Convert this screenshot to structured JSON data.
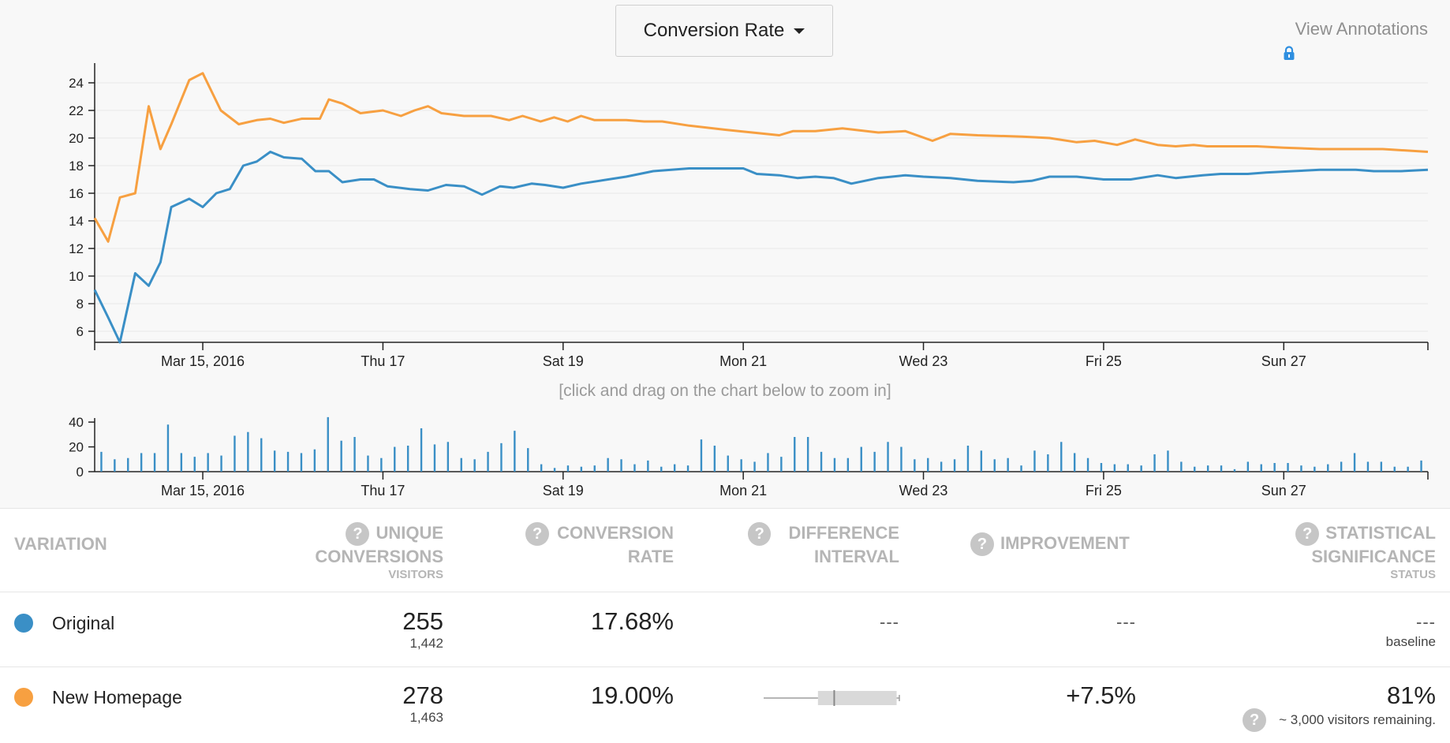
{
  "header": {
    "metric_dropdown_label": "Conversion Rate",
    "view_annotations_label": "View Annotations",
    "zoom_hint": "[click and drag on the chart below to zoom in]"
  },
  "colors": {
    "original": "#3a8fc6",
    "new_homepage": "#f7a041",
    "lock_icon": "#2f8fe0",
    "header_text": "#b5b5b5",
    "help_icon": "#c6c6c6"
  },
  "icons": [
    "lock-icon",
    "help-icon",
    "caret-down-icon"
  ],
  "chart_data": [
    {
      "type": "line",
      "title": "",
      "xlabel": "",
      "ylabel": "",
      "x_ticks": [
        "Mar 15, 2016",
        "Thu 17",
        "Sat 19",
        "Mon 21",
        "Wed 23",
        "Fri 25",
        "Sun 27"
      ],
      "y_ticks": [
        6,
        8,
        10,
        12,
        14,
        16,
        18,
        20,
        22,
        24
      ],
      "ylim": [
        5.2,
        25.2
      ],
      "x_unit": "days from chart start",
      "xlim": [
        0,
        14.8
      ],
      "grid": true,
      "legend": "none",
      "series": [
        {
          "name": "New Homepage",
          "color": "#f7a041",
          "points": [
            [
              0,
              14.2
            ],
            [
              0.15,
              12.5
            ],
            [
              0.28,
              15.7
            ],
            [
              0.45,
              16.0
            ],
            [
              0.6,
              22.3
            ],
            [
              0.73,
              19.2
            ],
            [
              0.85,
              21.0
            ],
            [
              1.05,
              24.2
            ],
            [
              1.2,
              24.7
            ],
            [
              1.4,
              22.0
            ],
            [
              1.6,
              21.0
            ],
            [
              1.8,
              21.3
            ],
            [
              1.95,
              21.4
            ],
            [
              2.1,
              21.1
            ],
            [
              2.3,
              21.4
            ],
            [
              2.5,
              21.4
            ],
            [
              2.6,
              22.8
            ],
            [
              2.75,
              22.5
            ],
            [
              2.95,
              21.8
            ],
            [
              3.2,
              22.0
            ],
            [
              3.4,
              21.6
            ],
            [
              3.55,
              22.0
            ],
            [
              3.7,
              22.3
            ],
            [
              3.85,
              21.8
            ],
            [
              4.1,
              21.6
            ],
            [
              4.4,
              21.6
            ],
            [
              4.6,
              21.3
            ],
            [
              4.75,
              21.6
            ],
            [
              4.95,
              21.2
            ],
            [
              5.1,
              21.5
            ],
            [
              5.25,
              21.2
            ],
            [
              5.4,
              21.6
            ],
            [
              5.55,
              21.3
            ],
            [
              5.9,
              21.3
            ],
            [
              6.1,
              21.2
            ],
            [
              6.3,
              21.2
            ],
            [
              6.6,
              20.9
            ],
            [
              7.0,
              20.6
            ],
            [
              7.3,
              20.4
            ],
            [
              7.6,
              20.2
            ],
            [
              7.75,
              20.5
            ],
            [
              8.0,
              20.5
            ],
            [
              8.3,
              20.7
            ],
            [
              8.7,
              20.4
            ],
            [
              9.0,
              20.5
            ],
            [
              9.3,
              19.8
            ],
            [
              9.5,
              20.3
            ],
            [
              9.8,
              20.2
            ],
            [
              10.3,
              20.1
            ],
            [
              10.6,
              20.0
            ],
            [
              10.9,
              19.7
            ],
            [
              11.1,
              19.8
            ],
            [
              11.35,
              19.5
            ],
            [
              11.55,
              19.9
            ],
            [
              11.8,
              19.5
            ],
            [
              12.0,
              19.4
            ],
            [
              12.2,
              19.5
            ],
            [
              12.35,
              19.4
            ],
            [
              12.9,
              19.4
            ],
            [
              13.2,
              19.3
            ],
            [
              13.6,
              19.2
            ],
            [
              14.0,
              19.2
            ],
            [
              14.3,
              19.2
            ],
            [
              14.8,
              19.0
            ]
          ]
        },
        {
          "name": "Original",
          "color": "#3a8fc6",
          "points": [
            [
              0,
              9.0
            ],
            [
              0.15,
              7.0
            ],
            [
              0.28,
              5.2
            ],
            [
              0.45,
              10.2
            ],
            [
              0.6,
              9.3
            ],
            [
              0.73,
              11.0
            ],
            [
              0.85,
              15.0
            ],
            [
              1.05,
              15.6
            ],
            [
              1.2,
              15.0
            ],
            [
              1.35,
              16.0
            ],
            [
              1.5,
              16.3
            ],
            [
              1.65,
              18.0
            ],
            [
              1.8,
              18.3
            ],
            [
              1.95,
              19.0
            ],
            [
              2.1,
              18.6
            ],
            [
              2.3,
              18.5
            ],
            [
              2.45,
              17.6
            ],
            [
              2.6,
              17.6
            ],
            [
              2.75,
              16.8
            ],
            [
              2.95,
              17.0
            ],
            [
              3.1,
              17.0
            ],
            [
              3.25,
              16.5
            ],
            [
              3.5,
              16.3
            ],
            [
              3.7,
              16.2
            ],
            [
              3.9,
              16.6
            ],
            [
              4.1,
              16.5
            ],
            [
              4.3,
              15.9
            ],
            [
              4.5,
              16.5
            ],
            [
              4.65,
              16.4
            ],
            [
              4.85,
              16.7
            ],
            [
              5.0,
              16.6
            ],
            [
              5.2,
              16.4
            ],
            [
              5.4,
              16.7
            ],
            [
              5.6,
              16.9
            ],
            [
              5.9,
              17.2
            ],
            [
              6.2,
              17.6
            ],
            [
              6.6,
              17.8
            ],
            [
              7.2,
              17.8
            ],
            [
              7.35,
              17.4
            ],
            [
              7.6,
              17.3
            ],
            [
              7.8,
              17.1
            ],
            [
              8.0,
              17.2
            ],
            [
              8.2,
              17.1
            ],
            [
              8.4,
              16.7
            ],
            [
              8.7,
              17.1
            ],
            [
              9.0,
              17.3
            ],
            [
              9.2,
              17.2
            ],
            [
              9.5,
              17.1
            ],
            [
              9.8,
              16.9
            ],
            [
              10.2,
              16.8
            ],
            [
              10.4,
              16.9
            ],
            [
              10.6,
              17.2
            ],
            [
              10.9,
              17.2
            ],
            [
              11.2,
              17.0
            ],
            [
              11.5,
              17.0
            ],
            [
              11.8,
              17.3
            ],
            [
              12.0,
              17.1
            ],
            [
              12.3,
              17.3
            ],
            [
              12.5,
              17.4
            ],
            [
              12.8,
              17.4
            ],
            [
              13.0,
              17.5
            ],
            [
              13.3,
              17.6
            ],
            [
              13.6,
              17.7
            ],
            [
              13.8,
              17.7
            ],
            [
              14.0,
              17.7
            ],
            [
              14.2,
              17.6
            ],
            [
              14.5,
              17.6
            ],
            [
              14.8,
              17.7
            ]
          ]
        }
      ]
    },
    {
      "type": "bar",
      "title": "",
      "xlabel": "",
      "ylabel": "",
      "x_ticks": [
        "Mar 15, 2016",
        "Thu 17",
        "Sat 19",
        "Mon 21",
        "Wed 23",
        "Fri 25",
        "Sun 27"
      ],
      "y_ticks": [
        0,
        20,
        40
      ],
      "ylim": [
        0,
        42
      ],
      "x_unit": "days from chart start",
      "xlim": [
        0,
        14.8
      ],
      "color": "#3a8fc6",
      "values": [
        16,
        10,
        11,
        15,
        15,
        38,
        15,
        12,
        15,
        13,
        29,
        32,
        27,
        17,
        16,
        15,
        18,
        44,
        25,
        28,
        13,
        11,
        20,
        21,
        35,
        22,
        24,
        11,
        10,
        16,
        23,
        33,
        19,
        6,
        3,
        5,
        4,
        5,
        11,
        10,
        6,
        9,
        4,
        6,
        5,
        26,
        21,
        13,
        10,
        8,
        15,
        12,
        28,
        28,
        16,
        11,
        11,
        20,
        16,
        24,
        20,
        10,
        11,
        8,
        10,
        21,
        17,
        10,
        11,
        5,
        17,
        14,
        24,
        15,
        11,
        7,
        6,
        6,
        5,
        14,
        17,
        8,
        4,
        5,
        5,
        2,
        8,
        6,
        7,
        7,
        5,
        4,
        6,
        8,
        15,
        8,
        8,
        4,
        4,
        9
      ]
    }
  ],
  "table": {
    "headers": {
      "variation": "VARIATION",
      "unique_conversions": [
        "UNIQUE",
        "CONVERSIONS"
      ],
      "unique_conversions_sub": "VISITORS",
      "conversion_rate": [
        "CONVERSION",
        "RATE"
      ],
      "difference_interval": [
        "DIFFERENCE",
        "INTERVAL"
      ],
      "improvement": "IMPROVEMENT",
      "statistical_significance": [
        "STATISTICAL",
        "SIGNIFICANCE"
      ],
      "statistical_significance_sub": "STATUS"
    },
    "rows": [
      {
        "name": "Original",
        "color": "#3a8fc6",
        "conversions": "255",
        "visitors": "1,442",
        "conversion_rate": "17.68%",
        "difference_interval": "---",
        "improvement": "---",
        "significance": "---",
        "status": "baseline"
      },
      {
        "name": "New Homepage",
        "color": "#f7a041",
        "conversions": "278",
        "visitors": "1,463",
        "conversion_rate": "19.00%",
        "difference_interval": {
          "low": 0.4,
          "high": 0.98,
          "median": 0.52
        },
        "improvement": "+7.5%",
        "significance": "81%",
        "status": "~ 3,000 visitors remaining."
      }
    ]
  }
}
